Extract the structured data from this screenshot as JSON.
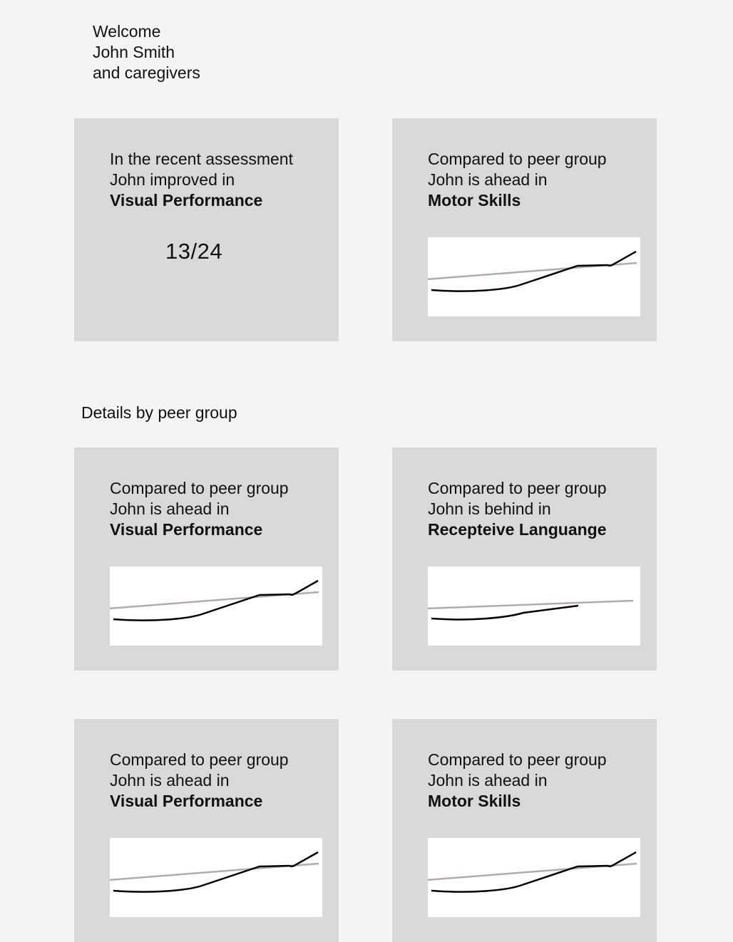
{
  "welcome": {
    "line1": "Welcome",
    "line2": "John Smith",
    "line3": "and caregivers"
  },
  "summary": [
    {
      "intro1": "In the recent assessment",
      "intro2": "John improved in",
      "metric": "Visual Performance",
      "score": "13/24"
    },
    {
      "intro1": "Compared to peer group",
      "intro2": "John is ahead in",
      "metric": "Motor Skills"
    }
  ],
  "details_title": "Details by peer group",
  "details": [
    {
      "intro1": "Compared to peer group",
      "intro2": "John is ahead in",
      "metric": "Visual Performance"
    },
    {
      "intro1": "Compared to peer group",
      "intro2": "John is behind in",
      "metric": "Recepteive Languange"
    },
    {
      "intro1": "Compared to peer group",
      "intro2": "John is ahead in",
      "metric": "Visual Performance"
    },
    {
      "intro1": "Compared to peer group",
      "intro2": "John is ahead in",
      "metric": "Motor Skills"
    }
  ],
  "colors": {
    "background": "#f4f4f4",
    "card": "#d9d9d9",
    "chart_bg": "#ffffff",
    "child_line": "#000000",
    "peer_line": "#b3aaab"
  }
}
